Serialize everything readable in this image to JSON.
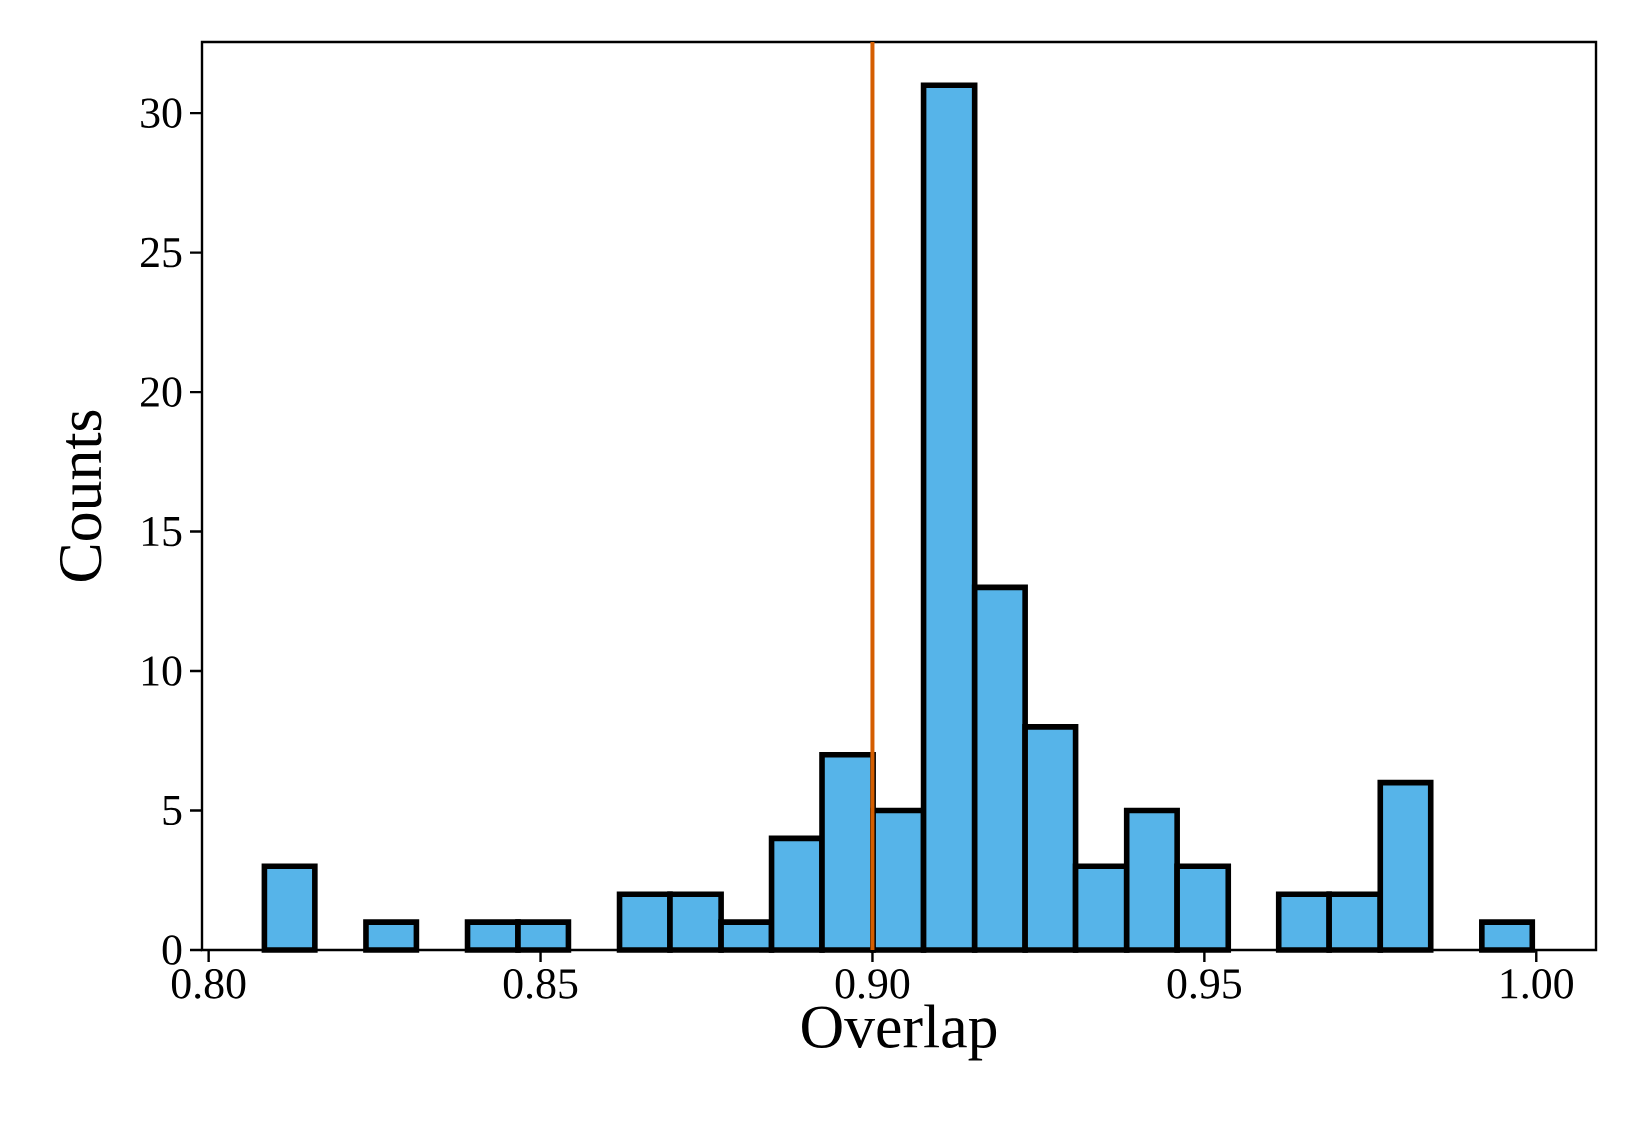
{
  "chart_data": {
    "type": "histogram",
    "xlabel": "Overlap",
    "ylabel": "Counts",
    "bins": [
      0.8084,
      0.816,
      0.8237,
      0.8313,
      0.839,
      0.8466,
      0.8542,
      0.8619,
      0.8695,
      0.8772,
      0.8848,
      0.8924,
      0.9001,
      0.9077,
      0.9154,
      0.923,
      0.9306,
      0.9383,
      0.9459,
      0.9536,
      0.9612,
      0.9688,
      0.9765,
      0.9841,
      0.9918,
      0.9994
    ],
    "values": [
      3,
      0,
      1,
      0,
      1,
      1,
      0,
      2,
      2,
      1,
      4,
      7,
      5,
      31,
      13,
      8,
      3,
      5,
      3,
      0,
      2,
      2,
      6,
      0,
      1
    ],
    "color": "#56b4e9",
    "xlim": [
      0.799,
      1.009
    ],
    "ylim": [
      0,
      32.55
    ],
    "xticks": [
      {
        "value": 0.8,
        "label": "0.80"
      },
      {
        "value": 0.85,
        "label": "0.85"
      },
      {
        "value": 0.9,
        "label": "0.90"
      },
      {
        "value": 0.95,
        "label": "0.95"
      },
      {
        "value": 1.0,
        "label": "1.00"
      }
    ],
    "yticks": [
      0,
      5,
      10,
      15,
      20,
      25,
      30
    ],
    "ref_lines": [
      {
        "axis": "x",
        "value": 0.9,
        "color": "#d55e00"
      }
    ]
  }
}
